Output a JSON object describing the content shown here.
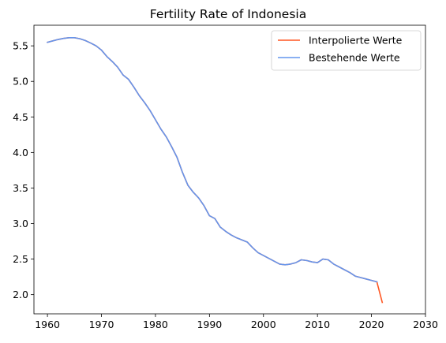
{
  "chart_data": {
    "type": "line",
    "title": "Fertility Rate of Indonesia",
    "xlabel": "",
    "ylabel": "",
    "xlim": [
      1957.5,
      2030
    ],
    "ylim": [
      1.73,
      5.79
    ],
    "xticks": [
      1960,
      1970,
      1980,
      1990,
      2000,
      2010,
      2020,
      2030
    ],
    "xtick_labels": [
      "1960",
      "1970",
      "1980",
      "1990",
      "2000",
      "2010",
      "2020",
      "2030"
    ],
    "yticks": [
      2.0,
      2.5,
      3.0,
      3.5,
      4.0,
      4.5,
      5.0,
      5.5
    ],
    "ytick_labels": [
      "2.0",
      "2.5",
      "3.0",
      "3.5",
      "4.0",
      "4.5",
      "5.0",
      "5.5"
    ],
    "grid": false,
    "legend_position": "top-right",
    "series": [
      {
        "name": "Interpolierte Werte",
        "color": "#ff5722",
        "x": [
          1960,
          1961,
          1962,
          1963,
          1964,
          1965,
          1966,
          1967,
          1968,
          1969,
          1970,
          1971,
          1972,
          1973,
          1974,
          1975,
          1976,
          1977,
          1978,
          1979,
          1980,
          1981,
          1982,
          1983,
          1984,
          1985,
          1986,
          1987,
          1988,
          1989,
          1990,
          1991,
          1992,
          1993,
          1994,
          1995,
          1996,
          1997,
          1998,
          1999,
          2000,
          2001,
          2002,
          2003,
          2004,
          2005,
          2006,
          2007,
          2008,
          2009,
          2010,
          2011,
          2012,
          2013,
          2014,
          2015,
          2016,
          2017,
          2018,
          2019,
          2020,
          2021,
          2022
        ],
        "y": [
          5.55,
          5.57,
          5.59,
          5.605,
          5.615,
          5.615,
          5.6,
          5.575,
          5.54,
          5.5,
          5.44,
          5.35,
          5.28,
          5.2,
          5.09,
          5.03,
          4.92,
          4.8,
          4.7,
          4.59,
          4.46,
          4.33,
          4.22,
          4.08,
          3.93,
          3.72,
          3.54,
          3.44,
          3.36,
          3.25,
          3.11,
          3.07,
          2.95,
          2.89,
          2.84,
          2.8,
          2.77,
          2.74,
          2.66,
          2.59,
          2.55,
          2.51,
          2.47,
          2.43,
          2.42,
          2.43,
          2.45,
          2.49,
          2.48,
          2.46,
          2.45,
          2.5,
          2.49,
          2.43,
          2.39,
          2.35,
          2.31,
          2.26,
          2.24,
          2.22,
          2.2,
          2.18,
          1.89
        ]
      },
      {
        "name": "Bestehende Werte",
        "color": "#6495ed",
        "x": [
          1960,
          1961,
          1962,
          1963,
          1964,
          1965,
          1966,
          1967,
          1968,
          1969,
          1970,
          1971,
          1972,
          1973,
          1974,
          1975,
          1976,
          1977,
          1978,
          1979,
          1980,
          1981,
          1982,
          1983,
          1984,
          1985,
          1986,
          1987,
          1988,
          1989,
          1990,
          1991,
          1992,
          1993,
          1994,
          1995,
          1996,
          1997,
          1998,
          1999,
          2000,
          2001,
          2002,
          2003,
          2004,
          2005,
          2006,
          2007,
          2008,
          2009,
          2010,
          2011,
          2012,
          2013,
          2014,
          2015,
          2016,
          2017,
          2018,
          2019,
          2020,
          2021
        ],
        "y": [
          5.55,
          5.57,
          5.59,
          5.605,
          5.615,
          5.615,
          5.6,
          5.575,
          5.54,
          5.5,
          5.44,
          5.35,
          5.28,
          5.2,
          5.09,
          5.03,
          4.92,
          4.8,
          4.7,
          4.59,
          4.46,
          4.33,
          4.22,
          4.08,
          3.93,
          3.72,
          3.54,
          3.44,
          3.36,
          3.25,
          3.11,
          3.07,
          2.95,
          2.89,
          2.84,
          2.8,
          2.77,
          2.74,
          2.66,
          2.59,
          2.55,
          2.51,
          2.47,
          2.43,
          2.42,
          2.43,
          2.45,
          2.49,
          2.48,
          2.46,
          2.45,
          2.5,
          2.49,
          2.43,
          2.39,
          2.35,
          2.31,
          2.26,
          2.24,
          2.22,
          2.2,
          2.18
        ]
      }
    ]
  }
}
